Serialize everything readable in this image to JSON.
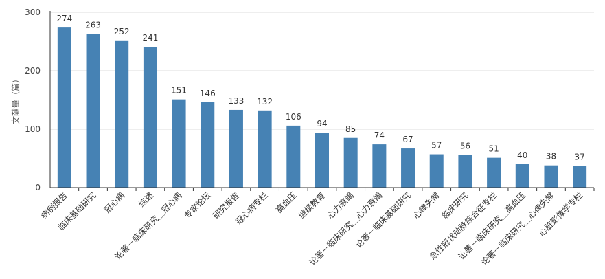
{
  "chart_data": {
    "type": "bar",
    "ylabel": "文献量（篇）",
    "ylim": [
      0,
      300
    ],
    "yticks": [
      0,
      100,
      200,
      300
    ],
    "grid": true,
    "bar_color": "#4682b4",
    "categories": [
      "病例报告",
      "临床基础研究",
      "冠心病",
      "综述",
      "论著－临床研究＿冠心病",
      "专家论坛",
      "研究报告",
      "冠心病专栏",
      "高血压",
      "继续教育",
      "心力衰竭",
      "论著－临床研究＿心力衰竭",
      "论著－临床基础研究",
      "心律失常",
      "临床研究",
      "急性冠状动脉综合征专栏",
      "论著－临床研究＿高血压",
      "论著－临床研究＿心律失常",
      "心脏影像学专栏"
    ],
    "values": [
      274,
      263,
      252,
      241,
      151,
      146,
      133,
      132,
      106,
      94,
      85,
      74,
      67,
      57,
      56,
      51,
      40,
      38,
      37
    ]
  }
}
